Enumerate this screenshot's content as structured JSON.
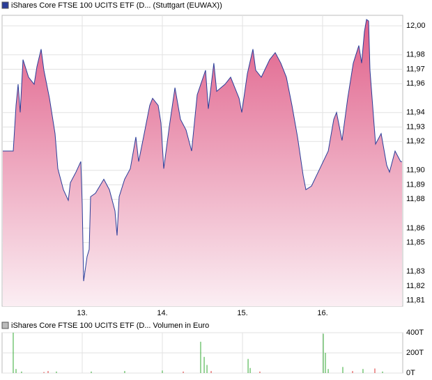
{
  "chart_data": [
    {
      "type": "line",
      "title": "iShares Core FTSE 100 UCITS ETF (D... (Stuttgart (EUWAX))",
      "x": [
        12.009,
        12.139,
        12.174,
        12.2,
        12.226,
        12.261,
        12.33,
        12.4,
        12.435,
        12.487,
        12.522,
        12.591,
        12.661,
        12.696,
        12.765,
        12.826,
        12.852,
        12.922,
        12.983,
        13.0,
        13.017,
        13.061,
        13.087,
        13.104,
        13.165,
        13.27,
        13.339,
        13.409,
        13.435,
        13.461,
        13.53,
        13.6,
        13.67,
        13.704,
        13.774,
        13.843,
        13.878,
        13.948,
        13.983,
        14.017,
        14.087,
        14.157,
        14.226,
        14.296,
        14.365,
        14.435,
        14.539,
        14.574,
        14.643,
        14.678,
        14.783,
        14.852,
        14.957,
        14.991,
        15.061,
        15.13,
        15.165,
        15.235,
        15.339,
        15.409,
        15.478,
        15.548,
        15.617,
        15.687,
        15.757,
        15.791,
        15.861,
        15.965,
        16.07,
        16.139,
        16.174,
        16.243,
        16.313,
        16.383,
        16.452,
        16.487,
        16.522,
        16.548,
        16.574,
        16.591,
        16.661,
        16.73,
        16.8,
        16.835,
        16.904,
        16.974,
        16.991
      ],
      "series": [
        {
          "color": "#2a3d99",
          "values": [
            11.9134,
            11.9134,
            11.945,
            11.9596,
            11.9401,
            11.9766,
            11.9645,
            11.9596,
            11.9718,
            11.9839,
            11.9693,
            11.9499,
            11.9255,
            11.9012,
            11.8866,
            11.8793,
            11.8915,
            11.8988,
            11.9061,
            11.8769,
            11.8234,
            11.8404,
            11.8453,
            11.8818,
            11.8842,
            11.8939,
            11.8866,
            11.872,
            11.855,
            11.8818,
            11.8939,
            11.9012,
            11.9231,
            11.9061,
            11.9255,
            11.945,
            11.9499,
            11.945,
            11.9328,
            11.9012,
            11.9304,
            11.9572,
            11.9353,
            11.928,
            11.9134,
            11.9523,
            11.9693,
            11.9426,
            11.9742,
            11.9547,
            11.9596,
            11.9645,
            11.9499,
            11.9401,
            11.9669,
            11.9839,
            11.9693,
            11.9645,
            11.9766,
            11.9815,
            11.9742,
            11.9645,
            11.945,
            11.9231,
            11.8964,
            11.8866,
            11.8891,
            11.9012,
            11.9134,
            11.9353,
            11.9401,
            11.9207,
            11.9499,
            11.9742,
            11.9864,
            11.9742,
            11.9961,
            12.0044,
            12.0034,
            11.9693,
            11.9182,
            11.9255,
            11.9036,
            11.8988,
            11.9134,
            11.9061,
            11.9061
          ]
        }
      ],
      "fill_color": "#e0608a",
      "xlim": [
        12,
        17
      ],
      "xticks": [
        {
          "value": 13,
          "label": "13."
        },
        {
          "value": 14,
          "label": "14."
        },
        {
          "value": 15,
          "label": "15."
        },
        {
          "value": 16,
          "label": "16."
        }
      ],
      "ylim": [
        11.806,
        12.0073
      ],
      "yticks": [
        {
          "value": 12.0,
          "label": "12,00"
        },
        {
          "value": 11.98,
          "label": "11,98"
        },
        {
          "value": 11.97,
          "label": "11,97"
        },
        {
          "value": 11.96,
          "label": "11,96"
        },
        {
          "value": 11.94,
          "label": "11,94"
        },
        {
          "value": 11.93,
          "label": "11,93"
        },
        {
          "value": 11.92,
          "label": "11,92"
        },
        {
          "value": 11.9,
          "label": "11,90"
        },
        {
          "value": 11.89,
          "label": "11,89"
        },
        {
          "value": 11.88,
          "label": "11,88"
        },
        {
          "value": 11.86,
          "label": "11,86"
        },
        {
          "value": 11.85,
          "label": "11,85"
        },
        {
          "value": 11.83,
          "label": "11,83"
        },
        {
          "value": 11.82,
          "label": "11,82"
        },
        {
          "value": 11.81,
          "label": "11,81"
        }
      ],
      "grid": true
    },
    {
      "type": "bar",
      "title": "iShares Core FTSE 100 UCITS ETF (D... Volumen in Euro",
      "x": [
        12.139,
        12.174,
        12.243,
        12.522,
        12.574,
        12.678,
        13.113,
        13.53,
        14.0,
        14.261,
        14.478,
        14.522,
        14.557,
        14.609,
        15.07,
        15.096,
        15.217,
        16.009,
        16.035,
        16.07,
        16.252,
        16.374,
        16.504,
        16.652,
        16.748
      ],
      "values": [
        400000,
        40000,
        15000,
        10000,
        20000,
        15000,
        15000,
        20000,
        25000,
        15000,
        310000,
        160000,
        80000,
        20000,
        140000,
        50000,
        15000,
        390000,
        200000,
        40000,
        60000,
        20000,
        40000,
        45000,
        15000
      ],
      "colors": [
        "#33aa33",
        "#33aa33",
        "#33aa33",
        "#dd3333",
        "#dd3333",
        "#33aa33",
        "#33aa33",
        "#33aa33",
        "#33aa33",
        "#dd3333",
        "#33aa33",
        "#33aa33",
        "#33aa33",
        "#dd3333",
        "#33aa33",
        "#33aa33",
        "#dd3333",
        "#33aa33",
        "#33aa33",
        "#33aa33",
        "#33aa33",
        "#dd3333",
        "#33aa33",
        "#dd3333",
        "#33aa33"
      ],
      "xlim": [
        12,
        17
      ],
      "xticks": [
        13,
        14,
        15,
        16
      ],
      "ylim": [
        0,
        400000
      ],
      "yticks": [
        {
          "value": 0,
          "label": "0T"
        },
        {
          "value": 200000,
          "label": "200T"
        },
        {
          "value": 400000,
          "label": "400T"
        }
      ],
      "grid": true
    }
  ]
}
